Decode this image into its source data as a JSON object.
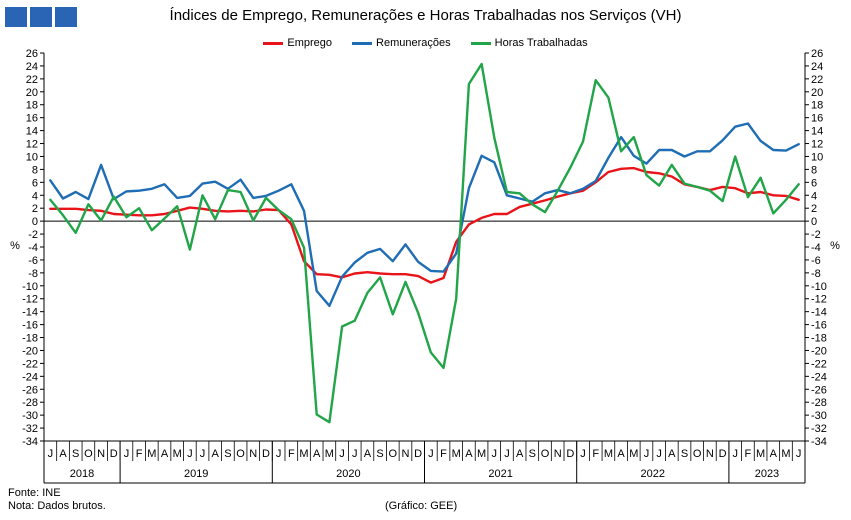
{
  "title": "Índices de Emprego, Remunerações e Horas Trabalhadas nos Serviços (VH)",
  "logo_colors": [
    "#2a64b4",
    "#2a64b4",
    "#2a64b4"
  ],
  "footer": {
    "source": "Fonte: INE",
    "note": "Nota: Dados brutos.",
    "credit": "(Gráfico: GEE)"
  },
  "chart_data": {
    "type": "line",
    "ylabel_left": "%",
    "ylabel_right": "%",
    "ylim": [
      -34,
      26
    ],
    "ytick_step": 2,
    "grid": false,
    "legend_position": "top-center",
    "x_months": [
      "J",
      "A",
      "S",
      "O",
      "N",
      "D",
      "J",
      "F",
      "M",
      "A",
      "M",
      "J",
      "J",
      "A",
      "S",
      "O",
      "N",
      "D",
      "J",
      "F",
      "M",
      "A",
      "M",
      "J",
      "J",
      "A",
      "S",
      "O",
      "N",
      "D",
      "J",
      "F",
      "M",
      "A",
      "M",
      "J",
      "J",
      "A",
      "S",
      "O",
      "N",
      "D",
      "J",
      "F",
      "M",
      "A",
      "M",
      "J",
      "J",
      "A",
      "S",
      "O",
      "N",
      "D",
      "J",
      "F",
      "M",
      "A",
      "M",
      "J"
    ],
    "year_labels": [
      {
        "label": "2018",
        "start": 0,
        "end": 5
      },
      {
        "label": "2019",
        "start": 6,
        "end": 17
      },
      {
        "label": "2020",
        "start": 18,
        "end": 29
      },
      {
        "label": "2021",
        "start": 30,
        "end": 41
      },
      {
        "label": "2022",
        "start": 42,
        "end": 53
      },
      {
        "label": "2023",
        "start": 54,
        "end": 59
      }
    ],
    "series": [
      {
        "name": "Emprego",
        "color": "#e8141a",
        "values": [
          1.9,
          1.9,
          1.9,
          1.7,
          1.6,
          1.1,
          1.0,
          0.9,
          0.9,
          1.1,
          1.6,
          2.1,
          1.9,
          1.6,
          1.5,
          1.6,
          1.5,
          1.8,
          1.7,
          -0.5,
          -6.2,
          -8.2,
          -8.3,
          -8.7,
          -8.1,
          -7.9,
          -8.1,
          -8.2,
          -8.2,
          -8.5,
          -9.5,
          -8.8,
          -3.2,
          -0.5,
          0.5,
          1.1,
          1.1,
          2.2,
          2.7,
          3.2,
          3.8,
          4.3,
          4.7,
          6.0,
          7.6,
          8.1,
          8.2,
          7.6,
          7.4,
          6.9,
          5.7,
          5.3,
          4.8,
          5.3,
          5.1,
          4.3,
          4.5,
          4.0,
          3.9,
          3.3
        ]
      },
      {
        "name": "Remunerações",
        "color": "#1f6db5",
        "values": [
          6.3,
          3.5,
          4.5,
          3.4,
          8.7,
          3.4,
          4.6,
          4.7,
          5.0,
          5.7,
          3.6,
          3.9,
          5.8,
          6.1,
          5.0,
          6.4,
          3.6,
          3.9,
          4.7,
          5.7,
          1.6,
          -10.8,
          -13.1,
          -8.6,
          -6.4,
          -4.9,
          -4.3,
          -6.2,
          -3.6,
          -6.3,
          -7.7,
          -7.8,
          -5.0,
          5.1,
          10.1,
          9.1,
          4.0,
          3.5,
          3.0,
          4.3,
          4.8,
          4.3,
          5.0,
          6.2,
          9.8,
          13.0,
          10.1,
          8.9,
          11.0,
          11.0,
          10.0,
          10.8,
          10.8,
          12.5,
          14.6,
          15.1,
          12.4,
          11.0,
          10.9,
          11.9
        ]
      },
      {
        "name": "Horas Trabalhadas",
        "color": "#22a548",
        "values": [
          3.3,
          0.9,
          -1.8,
          2.6,
          0.1,
          3.8,
          0.6,
          2.0,
          -1.4,
          0.4,
          2.3,
          -4.4,
          4.0,
          0.3,
          4.8,
          4.5,
          0.1,
          3.6,
          1.7,
          0.3,
          -4.1,
          -29.9,
          -31.1,
          -16.3,
          -15.4,
          -11.1,
          -8.7,
          -14.4,
          -9.4,
          -14.2,
          -20.3,
          -22.7,
          -12.0,
          21.2,
          24.3,
          12.9,
          4.5,
          4.3,
          2.6,
          1.4,
          4.7,
          8.3,
          12.3,
          21.8,
          19.1,
          10.8,
          13.0,
          7.1,
          5.5,
          8.7,
          5.8,
          5.3,
          4.7,
          3.1,
          10.0,
          3.7,
          6.7,
          1.2,
          3.3,
          5.7
        ]
      }
    ]
  }
}
